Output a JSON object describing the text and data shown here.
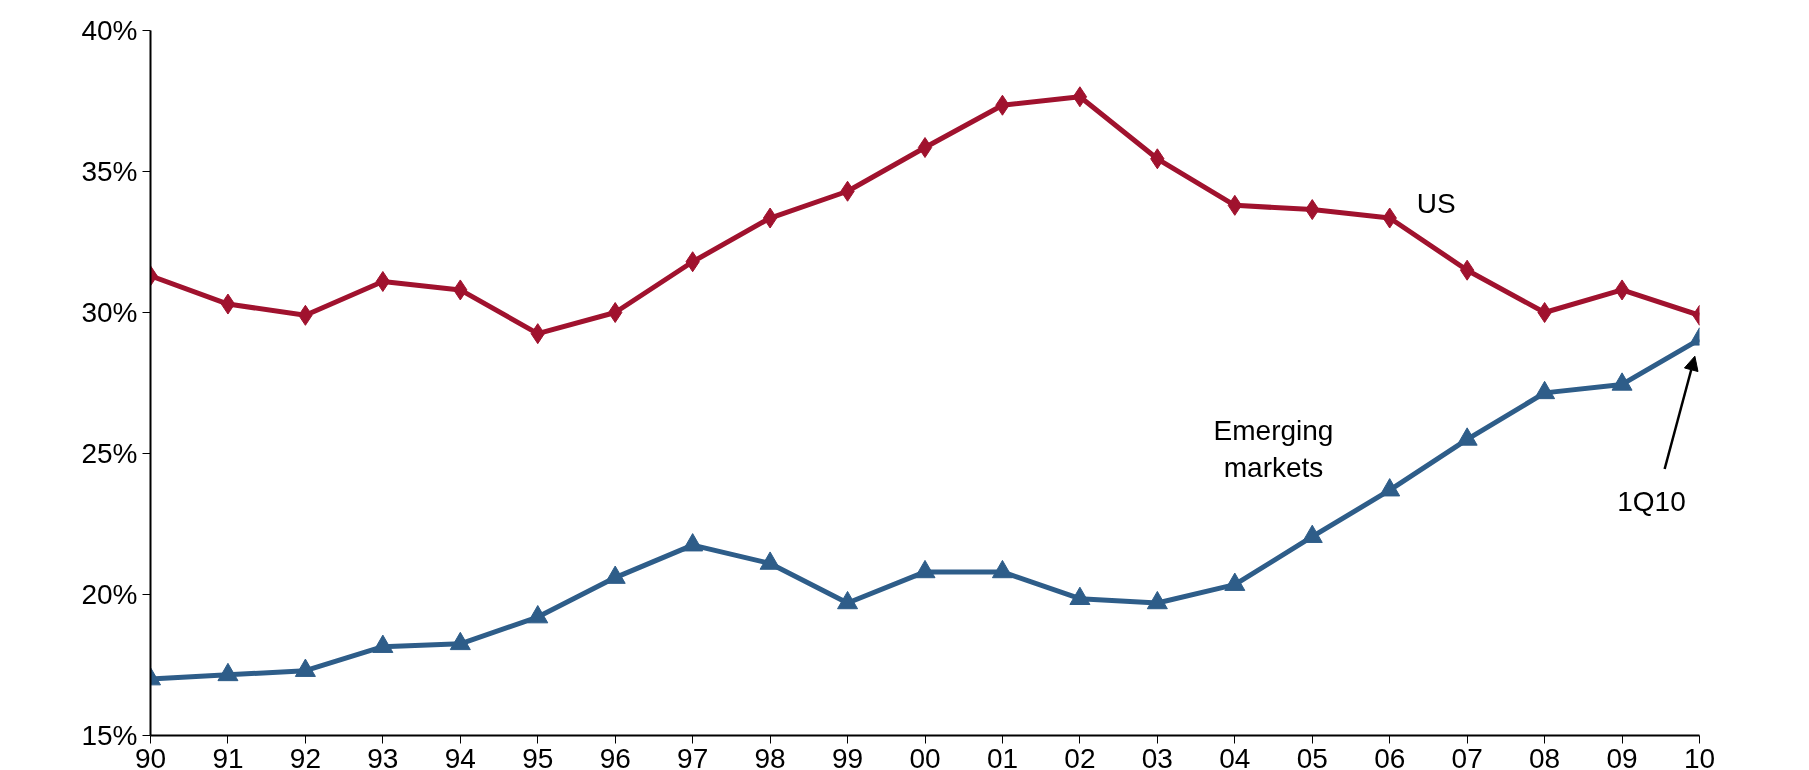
{
  "chart_data": {
    "type": "line",
    "categories": [
      "90",
      "91",
      "92",
      "93",
      "94",
      "95",
      "96",
      "97",
      "98",
      "99",
      "00",
      "01",
      "02",
      "03",
      "04",
      "05",
      "06",
      "07",
      "08",
      "09",
      "10"
    ],
    "series": [
      {
        "name": "US",
        "color": "#a0122e",
        "marker": "diamond",
        "values": [
          31.3,
          30.3,
          29.9,
          31.1,
          30.8,
          29.25,
          30.0,
          31.8,
          33.35,
          34.3,
          35.85,
          37.35,
          37.65,
          35.45,
          33.8,
          33.65,
          33.35,
          31.5,
          30.0,
          30.8,
          29.9
        ]
      },
      {
        "name": "Emerging markets",
        "color": "#2e5d89",
        "marker": "triangle",
        "values": [
          17.0,
          17.15,
          17.3,
          18.15,
          18.25,
          19.2,
          20.6,
          21.75,
          21.1,
          19.7,
          20.8,
          20.8,
          19.85,
          19.7,
          20.35,
          22.05,
          23.7,
          25.5,
          27.15,
          27.45,
          29.05
        ]
      }
    ],
    "ylim": [
      15,
      40
    ],
    "yticks": [
      {
        "value": 15,
        "label": "15%"
      },
      {
        "value": 20,
        "label": "20%"
      },
      {
        "value": 25,
        "label": "25%"
      },
      {
        "value": 30,
        "label": "30%"
      },
      {
        "value": 35,
        "label": "35%"
      },
      {
        "value": 40,
        "label": "40%"
      }
    ],
    "annotations": [
      "1Q10"
    ],
    "grid": false,
    "legend": false,
    "line_style": "solid"
  }
}
